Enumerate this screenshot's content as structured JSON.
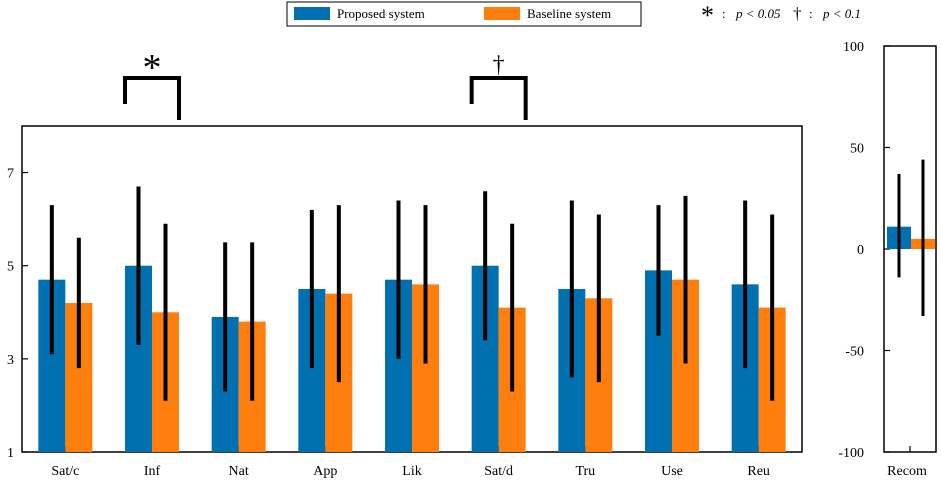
{
  "chart_data": [
    {
      "type": "bar",
      "categories": [
        "Sat/c",
        "Inf",
        "Nat",
        "App",
        "Lik",
        "Sat/d",
        "Tru",
        "Use",
        "Reu"
      ],
      "series": [
        {
          "name": "Proposed system",
          "color": "#0070b0",
          "values": [
            4.7,
            5.0,
            3.9,
            4.5,
            4.7,
            5.0,
            4.5,
            4.9,
            4.6
          ],
          "err_low": [
            3.1,
            3.3,
            2.3,
            2.8,
            3.0,
            3.4,
            2.6,
            3.5,
            2.8
          ],
          "err_high": [
            6.3,
            6.7,
            5.5,
            6.2,
            6.4,
            6.6,
            6.4,
            6.3,
            6.4
          ]
        },
        {
          "name": "Baseline system",
          "color": "#ff7f0e",
          "values": [
            4.2,
            4.0,
            3.8,
            4.4,
            4.6,
            4.1,
            4.3,
            4.7,
            4.1
          ],
          "err_low": [
            2.8,
            2.1,
            2.1,
            2.5,
            2.9,
            2.3,
            2.5,
            2.9,
            2.1
          ],
          "err_high": [
            5.6,
            5.9,
            5.5,
            6.3,
            6.3,
            5.9,
            6.1,
            6.5,
            6.1
          ]
        }
      ],
      "ylim": [
        1,
        8
      ],
      "yticks": [
        "1",
        "3",
        "5",
        "7"
      ],
      "significance": [
        {
          "category": "Inf",
          "symbol": "*"
        },
        {
          "category": "Sat/d",
          "symbol": "†"
        }
      ]
    },
    {
      "type": "bar",
      "categories": [
        "Recom"
      ],
      "series": [
        {
          "name": "Proposed system",
          "color": "#0070b0",
          "values": [
            11
          ],
          "err_low": [
            -14
          ],
          "err_high": [
            37
          ]
        },
        {
          "name": "Baseline system",
          "color": "#ff7f0e",
          "values": [
            5
          ],
          "err_low": [
            -33
          ],
          "err_high": [
            44
          ]
        }
      ],
      "ylim": [
        -100,
        100
      ],
      "yticks": [
        "-100",
        "-50",
        "0",
        "50",
        "100"
      ]
    }
  ],
  "legend": {
    "proposed_label": "Proposed system",
    "baseline_label": "Baseline system",
    "proposed_color": "#0070b0",
    "baseline_color": "#ff7f0e"
  },
  "significance_key": {
    "star_symbol": "*",
    "star_label": "p < 0.05",
    "dagger_symbol": "†",
    "dagger_label": "p < 0.1",
    "separator": ":"
  }
}
